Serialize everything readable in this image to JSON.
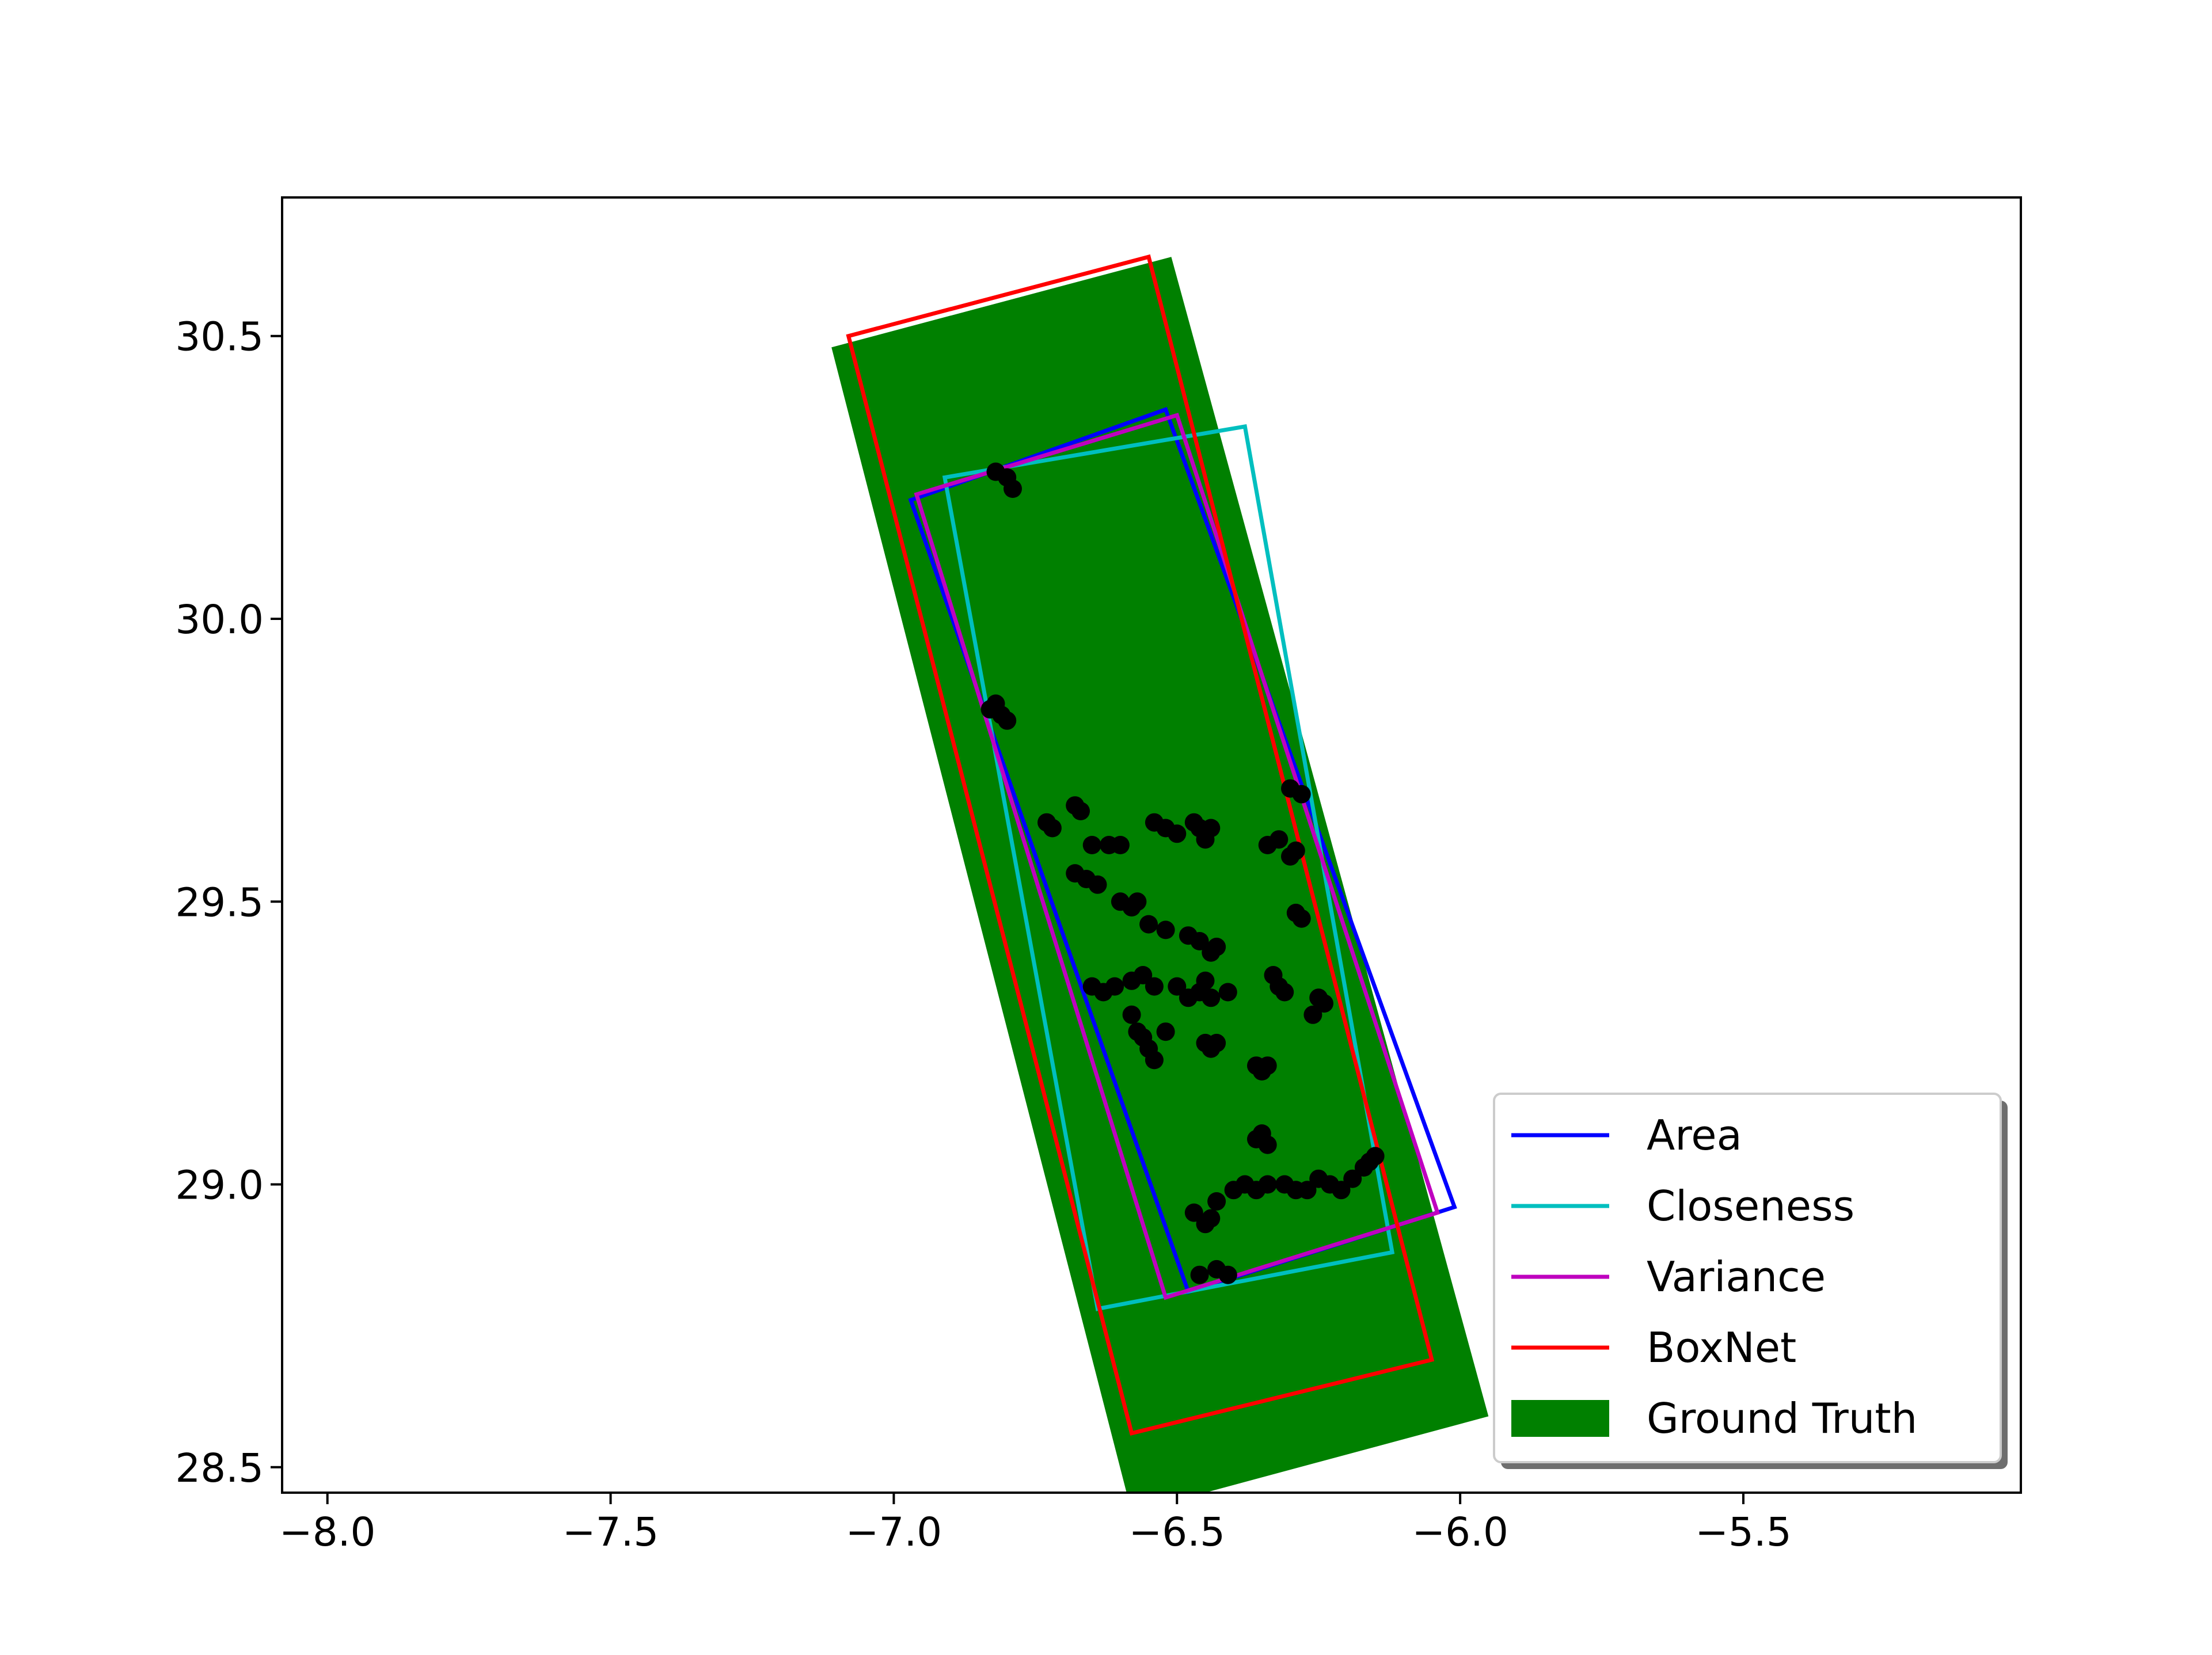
{
  "chart_data": {
    "type": "scatter",
    "title": "",
    "xlabel": "",
    "ylabel": "",
    "xlim": [
      -8.08,
      -5.01
    ],
    "ylim": [
      28.455,
      30.745
    ],
    "grid": false,
    "x_ticks": [
      {
        "value": -8.0,
        "label": "−8.0"
      },
      {
        "value": -7.5,
        "label": "−7.5"
      },
      {
        "value": -7.0,
        "label": "−7.0"
      },
      {
        "value": -6.5,
        "label": "−6.5"
      },
      {
        "value": -6.0,
        "label": "−6.0"
      },
      {
        "value": -5.5,
        "label": "−5.5"
      }
    ],
    "y_ticks": [
      {
        "value": 28.5,
        "label": "28.5"
      },
      {
        "value": 29.0,
        "label": "29.0"
      },
      {
        "value": 29.5,
        "label": "29.5"
      },
      {
        "value": 30.0,
        "label": "30.0"
      },
      {
        "value": 30.5,
        "label": "30.5"
      }
    ],
    "legend": {
      "location": "lower right",
      "entries": [
        {
          "label": "Area",
          "color": "#0000ff",
          "kind": "line"
        },
        {
          "label": "Closeness",
          "color": "#00bfbf",
          "kind": "line"
        },
        {
          "label": "Variance",
          "color": "#bf00bf",
          "kind": "line"
        },
        {
          "label": "BoxNet",
          "color": "#ff0000",
          "kind": "line"
        },
        {
          "label": "Ground Truth",
          "color": "#008000",
          "kind": "patch"
        }
      ]
    },
    "ground_truth": {
      "name": "Ground Truth",
      "color": "#008000",
      "polygon": [
        [
          -7.11,
          30.48
        ],
        [
          -6.51,
          30.64
        ],
        [
          -5.95,
          28.59
        ],
        [
          -6.58,
          28.42
        ]
      ]
    },
    "boxes": [
      {
        "name": "Area",
        "color": "#0000ff",
        "polygon": [
          [
            -6.97,
            30.21
          ],
          [
            -6.52,
            30.37
          ],
          [
            -6.01,
            28.96
          ],
          [
            -6.48,
            28.81
          ]
        ]
      },
      {
        "name": "Closeness",
        "color": "#00bfbf",
        "polygon": [
          [
            -6.91,
            30.25
          ],
          [
            -6.38,
            30.34
          ],
          [
            -6.12,
            28.88
          ],
          [
            -6.64,
            28.78
          ]
        ]
      },
      {
        "name": "Variance",
        "color": "#bf00bf",
        "polygon": [
          [
            -6.96,
            30.22
          ],
          [
            -6.5,
            30.36
          ],
          [
            -6.04,
            28.95
          ],
          [
            -6.52,
            28.8
          ]
        ]
      },
      {
        "name": "BoxNet",
        "color": "#ff0000",
        "polygon": [
          [
            -7.08,
            30.5
          ],
          [
            -6.55,
            30.64
          ],
          [
            -6.05,
            28.69
          ],
          [
            -6.58,
            28.56
          ]
        ]
      }
    ],
    "points": {
      "color": "#000000",
      "values": [
        [
          -6.82,
          30.26
        ],
        [
          -6.8,
          30.25
        ],
        [
          -6.79,
          30.23
        ],
        [
          -6.82,
          29.85
        ],
        [
          -6.81,
          29.83
        ],
        [
          -6.8,
          29.82
        ],
        [
          -6.83,
          29.84
        ],
        [
          -6.73,
          29.64
        ],
        [
          -6.72,
          29.63
        ],
        [
          -6.68,
          29.67
        ],
        [
          -6.67,
          29.66
        ],
        [
          -6.65,
          29.6
        ],
        [
          -6.62,
          29.6
        ],
        [
          -6.6,
          29.6
        ],
        [
          -6.54,
          29.64
        ],
        [
          -6.52,
          29.63
        ],
        [
          -6.5,
          29.62
        ],
        [
          -6.47,
          29.64
        ],
        [
          -6.46,
          29.63
        ],
        [
          -6.44,
          29.63
        ],
        [
          -6.45,
          29.61
        ],
        [
          -6.68,
          29.55
        ],
        [
          -6.66,
          29.54
        ],
        [
          -6.64,
          29.53
        ],
        [
          -6.6,
          29.5
        ],
        [
          -6.58,
          29.49
        ],
        [
          -6.57,
          29.5
        ],
        [
          -6.55,
          29.46
        ],
        [
          -6.52,
          29.45
        ],
        [
          -6.48,
          29.44
        ],
        [
          -6.46,
          29.43
        ],
        [
          -6.44,
          29.41
        ],
        [
          -6.43,
          29.42
        ],
        [
          -6.65,
          29.35
        ],
        [
          -6.63,
          29.34
        ],
        [
          -6.61,
          29.35
        ],
        [
          -6.58,
          29.36
        ],
        [
          -6.56,
          29.37
        ],
        [
          -6.54,
          29.35
        ],
        [
          -6.5,
          29.35
        ],
        [
          -6.48,
          29.33
        ],
        [
          -6.46,
          29.34
        ],
        [
          -6.44,
          29.33
        ],
        [
          -6.41,
          29.34
        ],
        [
          -6.45,
          29.36
        ],
        [
          -6.58,
          29.3
        ],
        [
          -6.57,
          29.27
        ],
        [
          -6.56,
          29.26
        ],
        [
          -6.55,
          29.24
        ],
        [
          -6.54,
          29.22
        ],
        [
          -6.52,
          29.27
        ],
        [
          -6.45,
          29.25
        ],
        [
          -6.44,
          29.24
        ],
        [
          -6.43,
          29.25
        ],
        [
          -6.36,
          29.21
        ],
        [
          -6.35,
          29.2
        ],
        [
          -6.34,
          29.21
        ],
        [
          -6.33,
          29.37
        ],
        [
          -6.32,
          29.35
        ],
        [
          -6.31,
          29.34
        ],
        [
          -6.25,
          29.33
        ],
        [
          -6.24,
          29.32
        ],
        [
          -6.26,
          29.3
        ],
        [
          -6.29,
          29.48
        ],
        [
          -6.28,
          29.47
        ],
        [
          -6.34,
          29.6
        ],
        [
          -6.32,
          29.61
        ],
        [
          -6.3,
          29.58
        ],
        [
          -6.29,
          29.59
        ],
        [
          -6.3,
          29.7
        ],
        [
          -6.28,
          29.69
        ],
        [
          -6.36,
          29.08
        ],
        [
          -6.34,
          29.07
        ],
        [
          -6.35,
          29.09
        ],
        [
          -6.43,
          28.97
        ],
        [
          -6.4,
          28.99
        ],
        [
          -6.38,
          29.0
        ],
        [
          -6.36,
          28.99
        ],
        [
          -6.34,
          29.0
        ],
        [
          -6.31,
          29.0
        ],
        [
          -6.29,
          28.99
        ],
        [
          -6.27,
          28.99
        ],
        [
          -6.25,
          29.01
        ],
        [
          -6.23,
          29.0
        ],
        [
          -6.21,
          28.99
        ],
        [
          -6.19,
          29.01
        ],
        [
          -6.17,
          29.03
        ],
        [
          -6.16,
          29.04
        ],
        [
          -6.15,
          29.05
        ],
        [
          -6.47,
          28.95
        ],
        [
          -6.45,
          28.93
        ],
        [
          -6.44,
          28.94
        ],
        [
          -6.46,
          28.84
        ],
        [
          -6.43,
          28.85
        ],
        [
          -6.41,
          28.84
        ]
      ]
    }
  }
}
